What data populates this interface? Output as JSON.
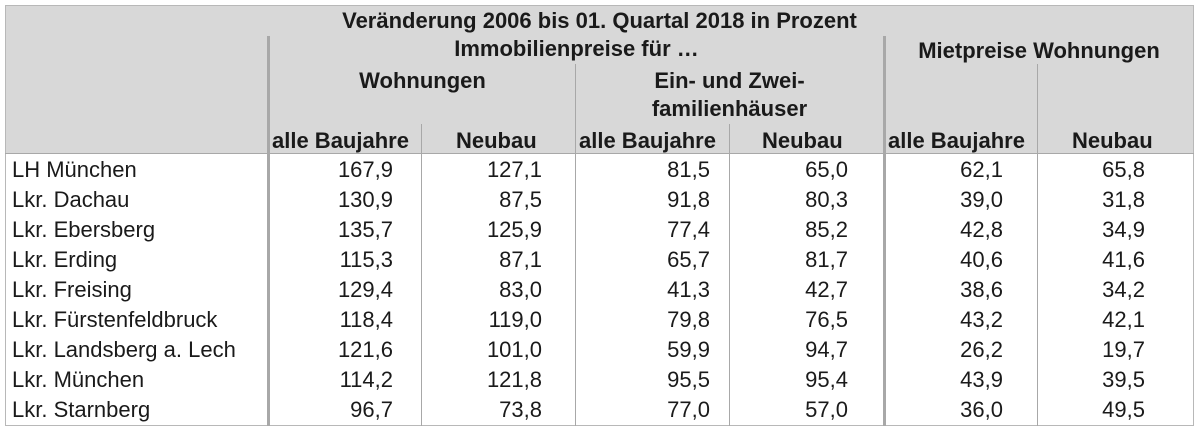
{
  "header": {
    "title": "Veränderung 2006 bis 01. Quartal 2018 in Prozent",
    "group_immobilien": "Immobilienpreise für …",
    "group_miet": "Mietpreise Wohnungen",
    "sub_wohnungen": "Wohnungen",
    "sub_haeuser_line1": "Ein- und Zwei-",
    "sub_haeuser_line2": "familienhäuser",
    "col_alle": "alle Baujahre",
    "col_neubau": "Neubau"
  },
  "rows": [
    {
      "label": "LH München",
      "values": [
        "167,9",
        "127,1",
        "81,5",
        "65,0",
        "62,1",
        "65,8"
      ]
    },
    {
      "label": "Lkr. Dachau",
      "values": [
        "130,9",
        "87,5",
        "91,8",
        "80,3",
        "39,0",
        "31,8"
      ]
    },
    {
      "label": "Lkr. Ebersberg",
      "values": [
        "135,7",
        "125,9",
        "77,4",
        "85,2",
        "42,8",
        "34,9"
      ]
    },
    {
      "label": "Lkr. Erding",
      "values": [
        "115,3",
        "87,1",
        "65,7",
        "81,7",
        "40,6",
        "41,6"
      ]
    },
    {
      "label": "Lkr. Freising",
      "values": [
        "129,4",
        "83,0",
        "41,3",
        "42,7",
        "38,6",
        "34,2"
      ]
    },
    {
      "label": "Lkr. Fürstenfeldbruck",
      "values": [
        "118,4",
        "119,0",
        "79,8",
        "76,5",
        "43,2",
        "42,1"
      ]
    },
    {
      "label": "Lkr. Landsberg a. Lech",
      "values": [
        "121,6",
        "101,0",
        "59,9",
        "94,7",
        "26,2",
        "19,7"
      ]
    },
    {
      "label": "Lkr. München",
      "values": [
        "114,2",
        "121,8",
        "95,5",
        "95,4",
        "43,9",
        "39,5"
      ]
    },
    {
      "label": "Lkr. Starnberg",
      "values": [
        "96,7",
        "73,8",
        "77,0",
        "57,0",
        "36,0",
        "49,5"
      ]
    }
  ]
}
